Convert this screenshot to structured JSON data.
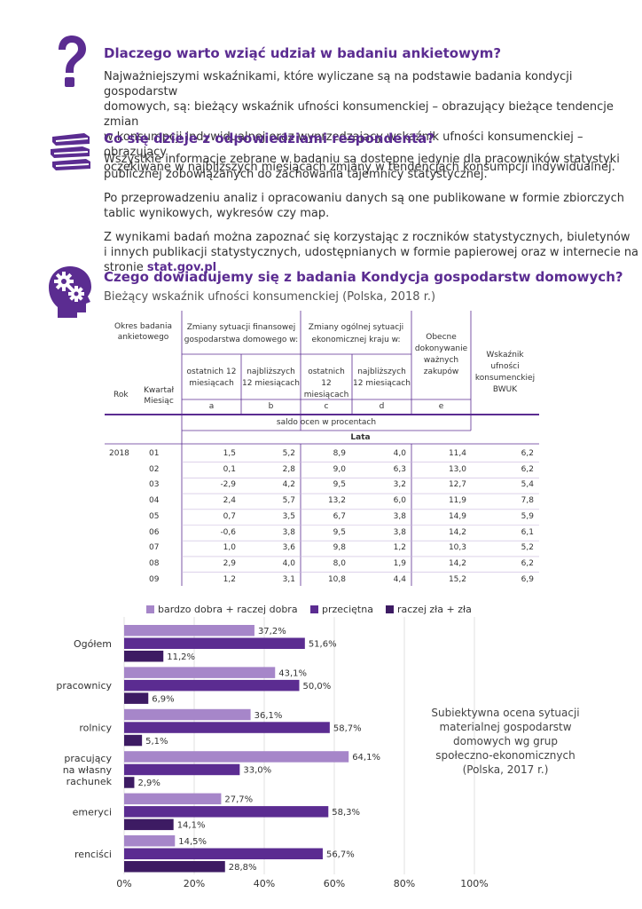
{
  "colors": {
    "accent": "#5b2c91",
    "light": "#a686c9",
    "mid": "#5b2c91",
    "dark": "#3d1b63"
  },
  "icons": [
    "question-icon",
    "books-icon",
    "gear-head-icon"
  ],
  "section1": {
    "title": "Dlaczego warto wziąć udział w badaniu ankietowym?",
    "lines": [
      "Najważniejszymi wskaźnikami, które wyliczane są na podstawie badania kondycji gospodarstw",
      "domowych, są: bieżący wskaźnik ufności konsumenckiej – obrazujący bieżące tendencje zmian",
      "w konsumpcji indywidualnej oraz wyprzedzający wskaźnik ufności konsumenckiej – obrazujący",
      "oczekiwane w najbliższych miesiącach zmiany w tendencjach konsumpcji indywidualnej."
    ]
  },
  "section2": {
    "title": "Co się dzieje z odpowiedziami respondenta?",
    "p1": [
      "Wszystkie informacje zebrane w badaniu są dostępne jedynie dla pracowników statystyki",
      "publicznej zobowiązanych do zachowania tajemnicy statystycznej."
    ],
    "p2": [
      "Po przeprowadzeniu analiz i opracowaniu danych są one publikowane w formie zbiorczych",
      "tablic wynikowych, wykresów czy map."
    ],
    "p3": [
      "Z wynikami badań można zapoznać się korzystając z roczników statystycznych, biuletynów",
      "i innych publikacji statystycznych, udostępnianych w formie papierowej oraz w internecie na"
    ],
    "p3_last": "stronie",
    "link": "stat.gov.pl"
  },
  "section3": {
    "title": "Czego dowiadujemy się z badania Kondycja gospodarstw domowych?",
    "table_caption": "Bieżący wskaźnik ufności konsumenckiej (Polska, 2018 r.)"
  },
  "table": {
    "h_okres": [
      "Okres badania",
      "ankietowego"
    ],
    "h_fin": [
      "Zmiany sytuacji finansowej",
      "gospodarstwa domowego w:"
    ],
    "h_ogol": [
      "Zmiany ogólnej sytuacji",
      "ekonomicznej kraju w:"
    ],
    "h_zakupy": [
      "Obecne",
      "dokonywanie",
      "ważnych",
      "zakupów"
    ],
    "h_bwuk": [
      "Wskaźnik ufności",
      "konsumenckiej",
      "BWUK"
    ],
    "h_ost": [
      "ostatnich 12",
      "miesiącach"
    ],
    "h_najb": [
      "najbliższych",
      "12 miesiącach"
    ],
    "h_ost2": [
      "ostatnich",
      "12 miesiącach"
    ],
    "h_najb2": [
      "najbliższych",
      "12 miesiącach"
    ],
    "h_rok": "Rok",
    "h_kw": [
      "Kwartał",
      "Miesiąc"
    ],
    "letters": [
      "a",
      "b",
      "c",
      "d",
      "e"
    ],
    "saldo": "saldo ocen w procentach",
    "lata": "Lata",
    "year": "2018",
    "rows": [
      [
        "01",
        "1,5",
        "5,2",
        "8,9",
        "4,0",
        "11,4",
        "6,2"
      ],
      [
        "02",
        "0,1",
        "2,8",
        "9,0",
        "6,3",
        "13,0",
        "6,2"
      ],
      [
        "03",
        "-2,9",
        "4,2",
        "9,5",
        "3,2",
        "12,7",
        "5,4"
      ],
      [
        "04",
        "2,4",
        "5,7",
        "13,2",
        "6,0",
        "11,9",
        "7,8"
      ],
      [
        "05",
        "0,7",
        "3,5",
        "6,7",
        "3,8",
        "14,9",
        "5,9"
      ],
      [
        "06",
        "-0,6",
        "3,8",
        "9,5",
        "3,8",
        "14,2",
        "6,1"
      ],
      [
        "07",
        "1,0",
        "3,6",
        "9,8",
        "1,2",
        "10,3",
        "5,2"
      ],
      [
        "08",
        "2,9",
        "4,0",
        "8,0",
        "1,9",
        "14,2",
        "6,2"
      ],
      [
        "09",
        "1,2",
        "3,1",
        "10,8",
        "4,4",
        "15,2",
        "6,9"
      ]
    ]
  },
  "chart_data": {
    "type": "bar",
    "orientation": "horizontal",
    "categories": [
      [
        "Ogółem"
      ],
      [
        "pracownicy"
      ],
      [
        "rolnicy"
      ],
      [
        "pracujący",
        "na własny",
        "rachunek"
      ],
      [
        "emeryci"
      ],
      [
        "renciści"
      ]
    ],
    "series": [
      {
        "name": "bardzo dobra + raczej dobra",
        "color": "#a686c9",
        "values": [
          37.2,
          43.1,
          36.1,
          64.1,
          27.7,
          14.5
        ],
        "labels": [
          "37,2%",
          "43,1%",
          "36,1%",
          "64,1%",
          "27,7%",
          "14,5%"
        ]
      },
      {
        "name": "przeciętna",
        "color": "#5b2c91",
        "values": [
          51.6,
          50.0,
          58.7,
          33.0,
          58.3,
          56.7
        ],
        "labels": [
          "51,6%",
          "50,0%",
          "58,7%",
          "33,0%",
          "58,3%",
          "56,7%"
        ]
      },
      {
        "name": "raczej zła + zła",
        "color": "#3d1b63",
        "values": [
          11.2,
          6.9,
          5.1,
          2.9,
          14.1,
          28.8
        ],
        "labels": [
          "11,2%",
          "6,9%",
          "5,1%",
          "2,9%",
          "14,1%",
          "28,8%"
        ]
      }
    ],
    "xlim": [
      0,
      100
    ],
    "xticks": [
      "0%",
      "20%",
      "40%",
      "60%",
      "80%",
      "100%"
    ],
    "grid": true,
    "legend_position": "top",
    "annotation": [
      "Subiektywna ocena sytuacji",
      "materialnej gospodarstw",
      "domowych wg grup",
      "społeczno-ekonomicznych",
      "(Polska, 2017 r.)"
    ]
  }
}
